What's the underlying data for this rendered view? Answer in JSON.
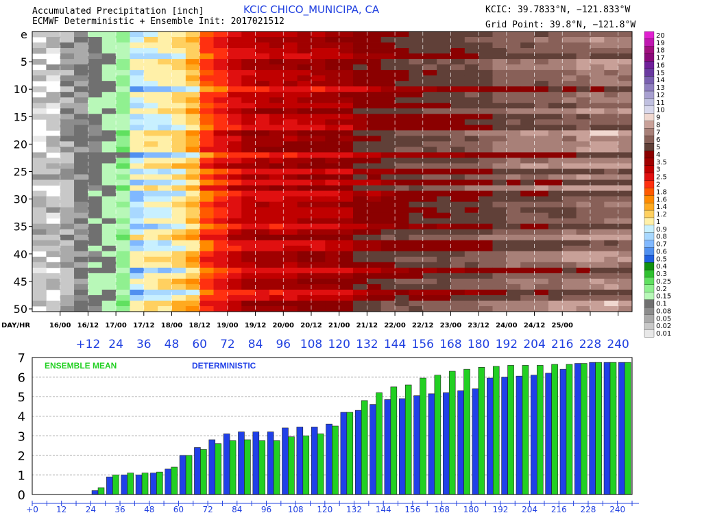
{
  "header": {
    "title": "Accumulated Precipitation [inch]",
    "subtitle": "ECMWF Deterministic + Ensemble Init: 2017021512",
    "station": "KCIC  CHICO_MUNICIPA, CA",
    "station_coords": "KCIC: 39.7833°N, −121.833°W",
    "grid_point": "Grid Point: 39.8°N, −121.8°W"
  },
  "colors": {
    "blue_axis": "#2040e0",
    "ensemble_bar": "#22d022",
    "deterministic_bar": "#2040e8",
    "background": "#ffffff"
  },
  "chart_data": [
    {
      "type": "heatmap",
      "title": "Accumulated Precipitation [inch]",
      "y_label_top": "e",
      "y_ticks": [
        "5",
        "10",
        "15",
        "20",
        "25",
        "30",
        "35",
        "40",
        "45",
        "50"
      ],
      "rows": 51,
      "row_labels_note": "row e = ECMWF deterministic, rows 1–50 = ensemble members",
      "day_hr_label": "DAY/HR",
      "day_hr_ticks": [
        "16/00",
        "16/12",
        "17/00",
        "17/12",
        "18/00",
        "18/12",
        "19/00",
        "19/12",
        "20/00",
        "20/12",
        "21/00",
        "21/12",
        "22/00",
        "22/12",
        "23/00",
        "23/12",
        "24/00",
        "24/12",
        "25/00"
      ],
      "forecast_hour_ticks": [
        "+12",
        "24",
        "36",
        "48",
        "60",
        "72",
        "84",
        "96",
        "108",
        "120",
        "132",
        "144",
        "156",
        "168",
        "180",
        "192",
        "204",
        "216",
        "228",
        "240"
      ],
      "forecast_hours": [
        0,
        6,
        12,
        18,
        24,
        30,
        36,
        42,
        48,
        54,
        60,
        66,
        72,
        78,
        84,
        90,
        96,
        102,
        108,
        114,
        120,
        126,
        132,
        138,
        144,
        150,
        156,
        162,
        168,
        174,
        180,
        186,
        192,
        198,
        204,
        210,
        216,
        222,
        228,
        234,
        240
      ],
      "colorbar": {
        "labels": [
          "20",
          "19",
          "18",
          "17",
          "16",
          "15",
          "14",
          "13",
          "12",
          "11",
          "10",
          "9",
          "8",
          "7",
          "6",
          "5",
          "4",
          "3.5",
          "3",
          "2.5",
          "2",
          "1.8",
          "1.6",
          "1.4",
          "1.2",
          "1",
          "0.9",
          "0.8",
          "0.7",
          "0.6",
          "0.5",
          "0.4",
          "0.3",
          "0.25",
          "0.2",
          "0.15",
          "0.1",
          "0.08",
          "0.05",
          "0.02",
          "0.01"
        ],
        "colors": [
          "#e020d0",
          "#c018b0",
          "#a0107f",
          "#8a0a7a",
          "#70209a",
          "#6a3aa0",
          "#7a60b0",
          "#9080c0",
          "#a8a0d0",
          "#c0c0e0",
          "#d8d8ec",
          "#f0d8d0",
          "#c8a098",
          "#a88078",
          "#886058",
          "#604038",
          "#8b0000",
          "#a00000",
          "#c00000",
          "#e01010",
          "#ff3010",
          "#ff5a00",
          "#ff8a00",
          "#ffaa20",
          "#ffd060",
          "#fff0a8",
          "#c8f0ff",
          "#a8d8ff",
          "#80b8ff",
          "#5090f0",
          "#2060e0",
          "#109010",
          "#30c030",
          "#60e060",
          "#90f090",
          "#b8f8b8",
          "#707070",
          "#8c8c8c",
          "#aaaaaa",
          "#c8c8c8",
          "#e8e8e8"
        ],
        "value_edges": [
          20,
          19,
          18,
          17,
          16,
          15,
          14,
          13,
          12,
          11,
          10,
          9,
          8,
          7,
          6,
          5,
          4,
          3.5,
          3,
          2.5,
          2,
          1.8,
          1.6,
          1.4,
          1.2,
          1,
          0.9,
          0.8,
          0.7,
          0.6,
          0.5,
          0.4,
          0.3,
          0.25,
          0.2,
          0.15,
          0.1,
          0.08,
          0.05,
          0.02,
          0.01
        ]
      }
    },
    {
      "type": "bar",
      "legend": [
        "ENSEMBLE MEAN",
        "DETERMINISTIC"
      ],
      "legend_placement": "top-left",
      "ylim": [
        0,
        7
      ],
      "y_ticks": [
        "0",
        "1",
        "2",
        "3",
        "4",
        "5",
        "6",
        "7"
      ],
      "x_ticks": [
        "+0",
        "12",
        "24",
        "36",
        "48",
        "60",
        "72",
        "84",
        "96",
        "108",
        "120",
        "132",
        "144",
        "156",
        "168",
        "180",
        "192",
        "204",
        "216",
        "228",
        "240"
      ],
      "x": [
        0,
        6,
        12,
        18,
        24,
        30,
        36,
        42,
        48,
        54,
        60,
        66,
        72,
        78,
        84,
        90,
        96,
        102,
        108,
        114,
        120,
        126,
        132,
        138,
        144,
        150,
        156,
        162,
        168,
        174,
        180,
        186,
        192,
        198,
        204,
        210,
        216,
        222,
        228,
        234,
        240
      ],
      "grid": true,
      "series": [
        {
          "name": "DETERMINISTIC",
          "values": [
            0,
            0,
            0,
            0,
            0.2,
            0.9,
            1.0,
            1.0,
            1.1,
            1.3,
            2.0,
            2.4,
            2.8,
            3.1,
            3.2,
            3.2,
            3.2,
            3.4,
            3.45,
            3.45,
            3.6,
            4.2,
            4.3,
            4.6,
            4.85,
            4.9,
            5.05,
            5.15,
            5.2,
            5.3,
            5.4,
            5.95,
            6.0,
            6.05,
            6.1,
            6.2,
            6.4,
            6.7,
            6.75,
            6.75,
            6.75
          ]
        },
        {
          "name": "ENSEMBLE MEAN",
          "values": [
            0,
            0,
            0,
            0,
            0.35,
            1.0,
            1.1,
            1.1,
            1.15,
            1.4,
            2.0,
            2.3,
            2.6,
            2.75,
            2.8,
            2.75,
            2.75,
            2.95,
            3.0,
            3.1,
            3.5,
            4.2,
            4.8,
            5.2,
            5.5,
            5.6,
            5.95,
            6.1,
            6.3,
            6.4,
            6.5,
            6.55,
            6.6,
            6.6,
            6.6,
            6.65,
            6.65,
            6.7,
            6.75,
            6.75,
            6.75
          ]
        }
      ]
    }
  ]
}
